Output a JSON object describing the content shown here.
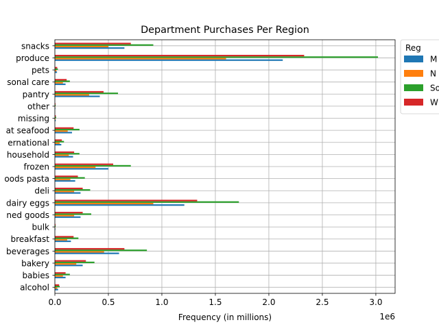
{
  "chart_data": {
    "type": "bar",
    "orientation": "horizontal",
    "title": "Department Purchases Per Region",
    "xlabel": "Frequency (in millions)",
    "ylabel": "",
    "x_offset_label": "1e6",
    "xlim": [
      0,
      3180000
    ],
    "x_ticks": [
      0,
      500000,
      1000000,
      1500000,
      2000000,
      2500000,
      3000000
    ],
    "x_tick_labels": [
      "0.0",
      "0.5",
      "1.0",
      "1.5",
      "2.0",
      "2.5",
      "3.0"
    ],
    "grid": true,
    "legend_placement": "outside-top-right",
    "legend_title": "Reg",
    "categories": [
      "alcohol",
      "babies",
      "bakery",
      "beverages",
      "breakfast",
      "bulk",
      "canned goods",
      "dairy eggs",
      "deli",
      "dry goods pasta",
      "frozen",
      "household",
      "international",
      "meat seafood",
      "missing",
      "other",
      "pantry",
      "personal care",
      "pets",
      "produce",
      "snacks"
    ],
    "category_labels": [
      "alcohol",
      "babies",
      "bakery",
      "beverages",
      "breakfast",
      "bulk",
      "ned goods",
      "dairy eggs",
      "deli",
      "oods pasta",
      "frozen",
      "household",
      "ernational",
      "at seafood",
      "missing",
      "other",
      "pantry",
      "sonal care",
      "pets",
      "produce",
      "snacks"
    ],
    "series": [
      {
        "name": "M",
        "color": "#1f77b4",
        "values": [
          30000,
          100000,
          260000,
          600000,
          150000,
          5000,
          240000,
          1210000,
          240000,
          190000,
          500000,
          170000,
          60000,
          160000,
          8000,
          5000,
          420000,
          100000,
          20000,
          2130000,
          650000
        ]
      },
      {
        "name": "N",
        "color": "#ff7f0e",
        "values": [
          22000,
          75000,
          200000,
          460000,
          115000,
          4000,
          180000,
          920000,
          180000,
          145000,
          380000,
          130000,
          45000,
          120000,
          6000,
          4000,
          320000,
          75000,
          15000,
          1600000,
          500000
        ]
      },
      {
        "name": "So",
        "color": "#2ca02c",
        "values": [
          45000,
          140000,
          370000,
          860000,
          220000,
          7000,
          340000,
          1720000,
          330000,
          280000,
          710000,
          230000,
          85000,
          230000,
          12000,
          7000,
          590000,
          140000,
          28000,
          3020000,
          920000
        ]
      },
      {
        "name": "W",
        "color": "#d62728",
        "values": [
          40000,
          100000,
          290000,
          650000,
          175000,
          6000,
          260000,
          1330000,
          260000,
          215000,
          545000,
          180000,
          65000,
          175000,
          9000,
          6000,
          455000,
          110000,
          22000,
          2330000,
          710000
        ]
      }
    ]
  }
}
